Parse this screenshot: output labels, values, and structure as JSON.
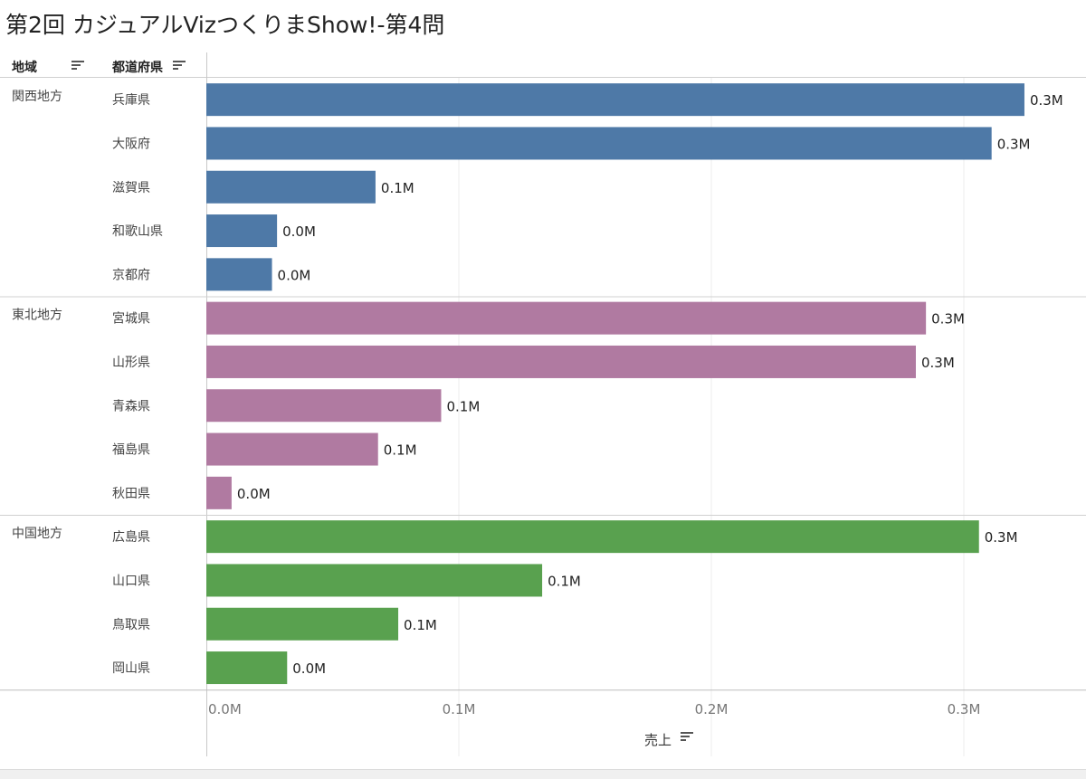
{
  "title": "第2回 カジュアルVizつくりまShow!-第4問",
  "headers": {
    "region": "地域",
    "prefecture": "都道府県",
    "x_axis": "売上"
  },
  "colors": {
    "関西地方": "#4e79a7",
    "東北地方": "#b07aa1",
    "中国地方": "#59a14f"
  },
  "chart_data": {
    "type": "bar",
    "orientation": "horizontal",
    "title": "第2回 カジュアルVizつくりまShow!-第4問",
    "xlabel": "売上",
    "xlim": [
      0,
      0.35
    ],
    "xticks": [
      {
        "value": 0.0,
        "label": "0.0M"
      },
      {
        "value": 0.1,
        "label": "0.1M"
      },
      {
        "value": 0.2,
        "label": "0.2M"
      },
      {
        "value": 0.3,
        "label": "0.3M"
      }
    ],
    "grid": true,
    "groups": [
      {
        "name": "関西地方",
        "items": [
          {
            "label": "兵庫県",
            "value": 0.324,
            "data_label": "0.3M"
          },
          {
            "label": "大阪府",
            "value": 0.311,
            "data_label": "0.3M"
          },
          {
            "label": "滋賀県",
            "value": 0.067,
            "data_label": "0.1M"
          },
          {
            "label": "和歌山県",
            "value": 0.028,
            "data_label": "0.0M"
          },
          {
            "label": "京都府",
            "value": 0.026,
            "data_label": "0.0M"
          }
        ]
      },
      {
        "name": "東北地方",
        "items": [
          {
            "label": "宮城県",
            "value": 0.285,
            "data_label": "0.3M"
          },
          {
            "label": "山形県",
            "value": 0.281,
            "data_label": "0.3M"
          },
          {
            "label": "青森県",
            "value": 0.093,
            "data_label": "0.1M"
          },
          {
            "label": "福島県",
            "value": 0.068,
            "data_label": "0.1M"
          },
          {
            "label": "秋田県",
            "value": 0.01,
            "data_label": "0.0M"
          }
        ]
      },
      {
        "name": "中国地方",
        "items": [
          {
            "label": "広島県",
            "value": 0.306,
            "data_label": "0.3M"
          },
          {
            "label": "山口県",
            "value": 0.133,
            "data_label": "0.1M"
          },
          {
            "label": "鳥取県",
            "value": 0.076,
            "data_label": "0.1M"
          },
          {
            "label": "岡山県",
            "value": 0.032,
            "data_label": "0.0M"
          }
        ]
      }
    ]
  }
}
